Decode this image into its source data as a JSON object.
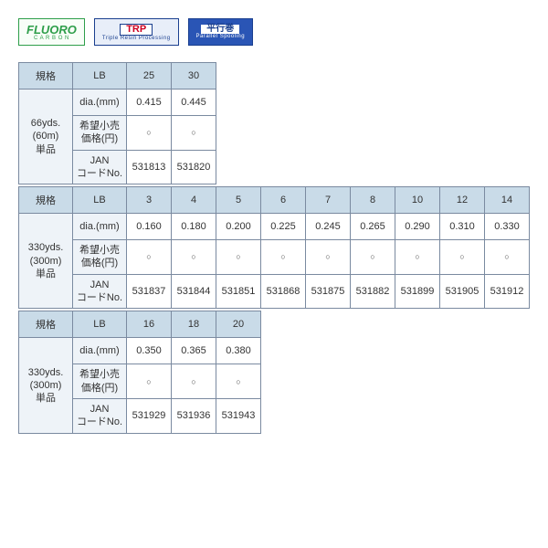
{
  "badges": {
    "fluoro": {
      "title": "FLUORO",
      "sub": "C A R B O N"
    },
    "trp": {
      "title": "TRP",
      "sub": "Triple Resin Processing"
    },
    "parallel": {
      "title": "平行巻",
      "sub": "Parallel Spooling"
    }
  },
  "labels": {
    "spec": "規格",
    "lb": "LB",
    "dia": "dia.(mm)",
    "priceLine1": "希望小売",
    "priceLine2": "価格(円)",
    "janLine1": "JAN",
    "janLine2": "コードNo.",
    "circle": "○"
  },
  "sections": [
    {
      "spool": "66yds.\n(60m)\n単品",
      "lb": [
        "25",
        "30"
      ],
      "dia": [
        "0.415",
        "0.445"
      ],
      "price": [
        "○",
        "○"
      ],
      "jan": [
        "531813",
        "531820"
      ]
    },
    {
      "spool": "330yds.\n(300m)\n単品",
      "lb": [
        "3",
        "4",
        "5",
        "6",
        "7",
        "8",
        "10",
        "12",
        "14"
      ],
      "dia": [
        "0.160",
        "0.180",
        "0.200",
        "0.225",
        "0.245",
        "0.265",
        "0.290",
        "0.310",
        "0.330"
      ],
      "price": [
        "○",
        "○",
        "○",
        "○",
        "○",
        "○",
        "○",
        "○",
        "○"
      ],
      "jan": [
        "531837",
        "531844",
        "531851",
        "531868",
        "531875",
        "531882",
        "531899",
        "531905",
        "531912"
      ]
    },
    {
      "spool": "330yds.\n(300m)\n単品",
      "lb": [
        "16",
        "18",
        "20"
      ],
      "dia": [
        "0.350",
        "0.365",
        "0.380"
      ],
      "price": [
        "○",
        "○",
        "○"
      ],
      "jan": [
        "531929",
        "531936",
        "531943"
      ]
    }
  ],
  "style": {
    "headerBg": "#c9dbe8",
    "labelBg": "#eef3f8",
    "borderColor": "#7a8aa0",
    "cellMinWidth": 44
  }
}
